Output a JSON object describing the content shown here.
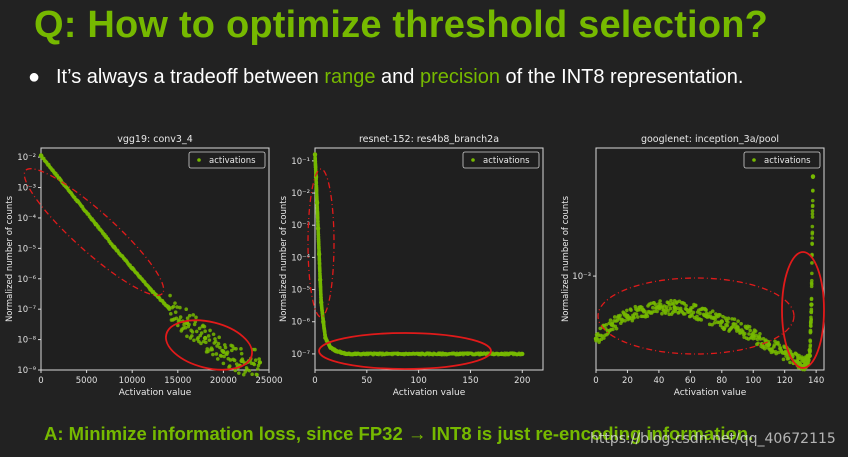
{
  "slide": {
    "title": "Q: How to optimize threshold selection?",
    "bullet": {
      "pre": "It’s always a tradeoff between ",
      "range": "range",
      "mid": " and ",
      "precision": "precision",
      "post": " of the INT8 representation."
    },
    "footer": "A: Minimize information loss, since FP32 → INT8 is just re-encoding information.",
    "watermark": "https://blog.csdn.net/qq_40672115",
    "colors": {
      "accent": "#76b900",
      "background": "#222222",
      "text": "#ffffff",
      "highlight": "#e11a1a"
    }
  },
  "chart_data": [
    {
      "type": "scatter",
      "title": "vgg19: conv3_4",
      "xlabel": "Activation value",
      "ylabel": "Normalized number of counts",
      "legend": "activations",
      "xlim": [
        0,
        25000
      ],
      "ylim_log10": [
        -9,
        -1.7
      ],
      "xticks": [
        "0",
        "5000",
        "10000",
        "15000",
        "20000",
        "25000"
      ],
      "yticks": [
        {
          "label": "10⁻⁹",
          "exp": -9
        },
        {
          "label": "10⁻⁸",
          "exp": -8
        },
        {
          "label": "10⁻⁷",
          "exp": -7
        },
        {
          "label": "10⁻⁶",
          "exp": -6
        },
        {
          "label": "10⁻⁵",
          "exp": -5
        },
        {
          "label": "10⁻⁴",
          "exp": -4
        },
        {
          "label": "10⁻³",
          "exp": -3
        },
        {
          "label": "10⁻²",
          "exp": -2
        }
      ],
      "series": [
        {
          "name": "activations",
          "x": [
            0,
            2000,
            4000,
            6000,
            8000,
            10000,
            12000,
            14000,
            16000,
            18000,
            20000,
            22000,
            24000
          ],
          "y_log10": [
            -1.95,
            -2.7,
            -3.45,
            -4.2,
            -4.95,
            -5.65,
            -6.35,
            -6.95,
            -7.45,
            -7.95,
            -8.4,
            -8.7,
            -8.75
          ]
        }
      ]
    },
    {
      "type": "scatter",
      "title": "resnet-152: res4b8_branch2a",
      "xlabel": "Activation value",
      "ylabel": "Normalized number of counts",
      "legend": "activations",
      "xlim": [
        0,
        220
      ],
      "ylim_log10": [
        -7.5,
        -0.6
      ],
      "xticks": [
        "0",
        "50",
        "100",
        "150",
        "200"
      ],
      "yticks": [
        {
          "label": "10⁻⁷",
          "exp": -7
        },
        {
          "label": "10⁻⁶",
          "exp": -6
        },
        {
          "label": "10⁻⁵",
          "exp": -5
        },
        {
          "label": "10⁻⁴",
          "exp": -4
        },
        {
          "label": "10⁻³",
          "exp": -3
        },
        {
          "label": "10⁻²",
          "exp": -2
        },
        {
          "label": "10⁻¹",
          "exp": -1
        }
      ],
      "series": [
        {
          "name": "activations",
          "x": [
            0,
            1,
            2,
            3,
            4,
            5,
            6,
            8,
            10,
            15,
            20,
            30,
            40,
            60,
            80,
            100,
            120,
            140,
            160,
            180,
            200
          ],
          "y_log10": [
            -0.8,
            -1.5,
            -2.3,
            -3.1,
            -3.9,
            -4.7,
            -5.4,
            -6.0,
            -6.5,
            -6.8,
            -6.9,
            -7.0,
            -7.0,
            -7.0,
            -7.0,
            -7.0,
            -7.0,
            -7.0,
            -7.0,
            -7.0,
            -7.0
          ]
        }
      ]
    },
    {
      "type": "scatter",
      "title": "googlenet: inception_3a/pool",
      "xlabel": "Activation value",
      "ylabel": "Normalized number of counts",
      "legend": "activations",
      "xlim": [
        0,
        145
      ],
      "ylim_log10": [
        -3.33,
        -2.55
      ],
      "xticks": [
        "0",
        "20",
        "40",
        "60",
        "80",
        "100",
        "120",
        "140"
      ],
      "yticks": [
        {
          "label": "10⁻³",
          "exp": -3
        }
      ],
      "series": [
        {
          "name": "activations",
          "x": [
            0,
            10,
            20,
            30,
            40,
            50,
            60,
            70,
            80,
            90,
            100,
            110,
            120,
            128,
            133,
            136,
            137,
            138
          ],
          "y_log10": [
            -3.22,
            -3.17,
            -3.14,
            -3.12,
            -3.11,
            -3.11,
            -3.12,
            -3.14,
            -3.16,
            -3.18,
            -3.21,
            -3.24,
            -3.27,
            -3.3,
            -3.31,
            -3.28,
            -3.1,
            -2.65
          ]
        }
      ]
    }
  ]
}
